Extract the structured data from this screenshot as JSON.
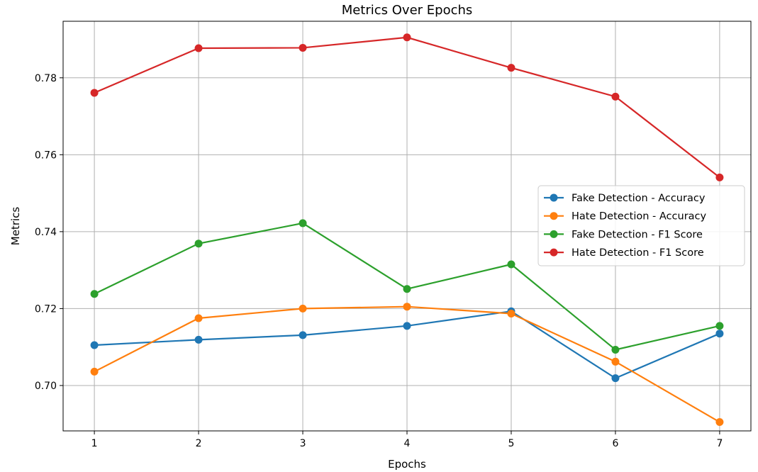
{
  "chart_data": {
    "type": "line",
    "title": "Metrics Over Epochs",
    "xlabel": "Epochs",
    "ylabel": "Metrics",
    "x": [
      1,
      2,
      3,
      4,
      5,
      6,
      7
    ],
    "xlim": [
      0.7,
      7.3
    ],
    "ylim": [
      0.6882,
      0.7947
    ],
    "yticks": [
      0.7,
      0.72,
      0.74,
      0.76,
      0.78
    ],
    "ytick_labels": [
      "0.70",
      "0.72",
      "0.74",
      "0.76",
      "0.78"
    ],
    "xtick_labels": [
      "1",
      "2",
      "3",
      "4",
      "5",
      "6",
      "7"
    ],
    "grid": true,
    "legend_position": "center-right",
    "series": [
      {
        "name": "Fake Detection - Accuracy",
        "color": "#1f77b4",
        "values": [
          0.7105,
          0.7119,
          0.7131,
          0.7155,
          0.7193,
          0.7019,
          0.7135
        ]
      },
      {
        "name": "Hate Detection - Accuracy",
        "color": "#ff7f0e",
        "values": [
          0.7036,
          0.7175,
          0.72,
          0.7205,
          0.7187,
          0.7062,
          0.6905
        ]
      },
      {
        "name": "Fake Detection - F1 Score",
        "color": "#2ca02c",
        "values": [
          0.7238,
          0.7369,
          0.7422,
          0.7251,
          0.7315,
          0.7093,
          0.7155
        ]
      },
      {
        "name": "Hate Detection - F1 Score",
        "color": "#d62728",
        "values": [
          0.7761,
          0.7877,
          0.7878,
          0.7905,
          0.7826,
          0.7751,
          0.7541
        ]
      }
    ]
  }
}
